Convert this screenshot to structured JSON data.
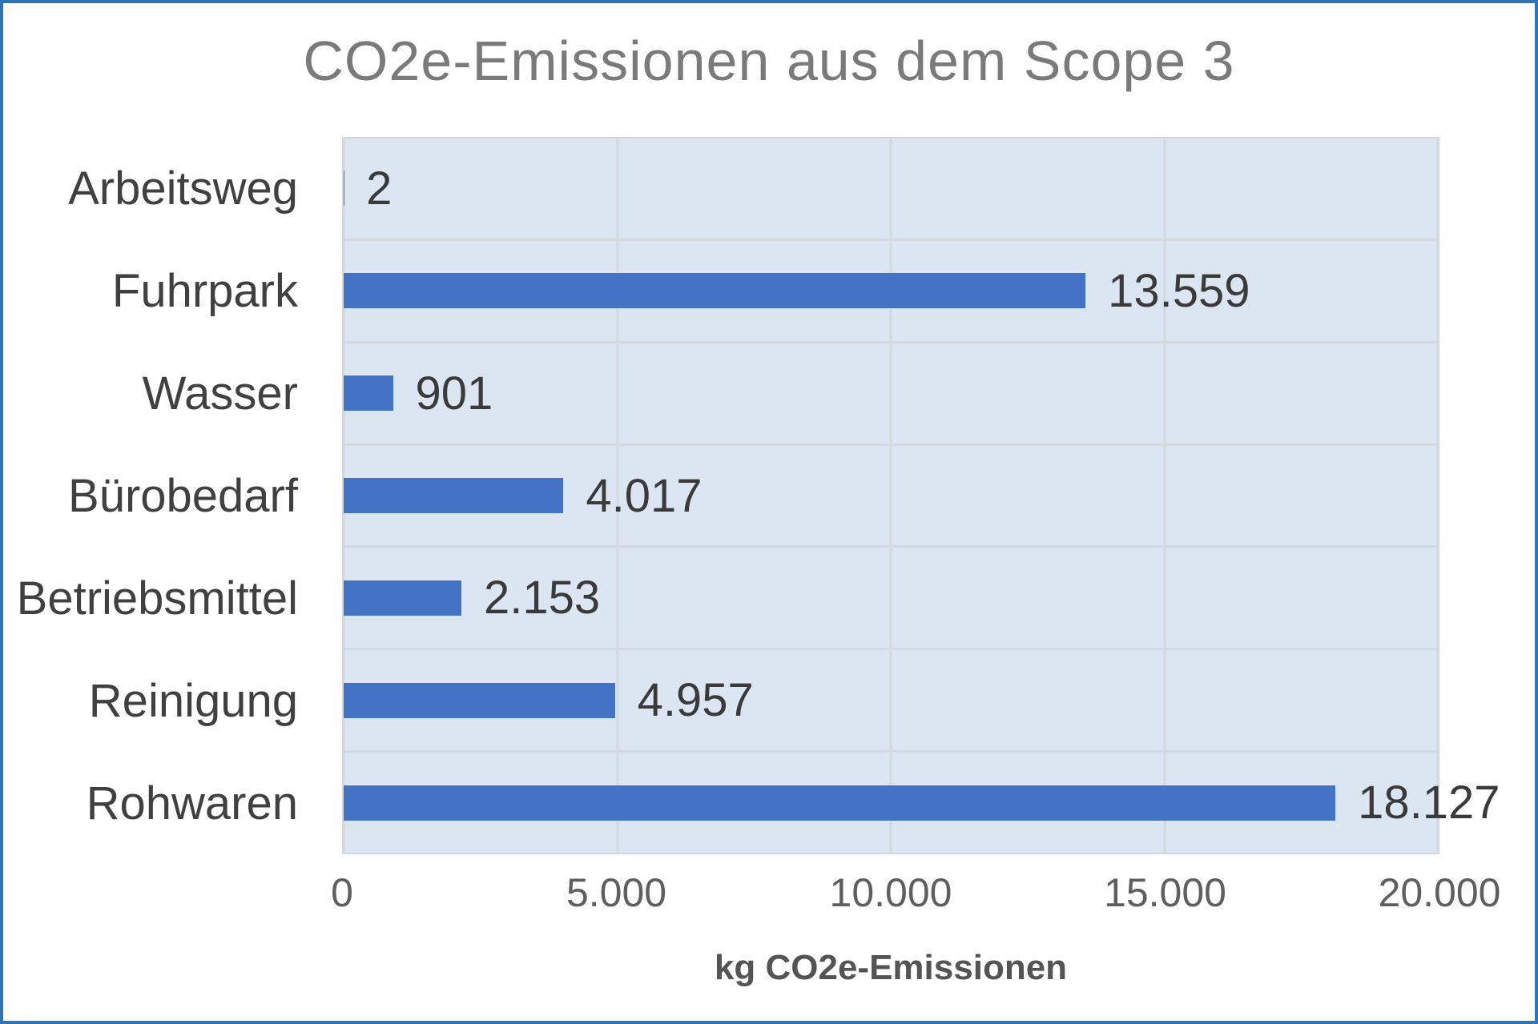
{
  "chart_data": {
    "type": "bar",
    "orientation": "horizontal",
    "title": "CO2e-Emissionen aus dem Scope 3",
    "xlabel": "kg CO2e-Emissionen",
    "categories": [
      "Arbeitsweg",
      "Fuhrpark",
      "Wasser",
      "Bürobedarf",
      "Betriebsmittel",
      "Reinigung",
      "Rohwaren"
    ],
    "values": [
      2,
      13559,
      901,
      4017,
      2153,
      4957,
      18127
    ],
    "value_labels": [
      "2",
      "13.559",
      "901",
      "4.017",
      "2.153",
      "4.957",
      "18.127"
    ],
    "xlim": [
      0,
      20000
    ],
    "x_ticks": [
      0,
      5000,
      10000,
      15000,
      20000
    ],
    "x_tick_labels": [
      "0",
      "5.000",
      "10.000",
      "15.000",
      "20.000"
    ],
    "grid": "vertical major gridlines at each tick, horizontal separators between category bands",
    "legend": "none",
    "colors": {
      "bar": "#4472C4",
      "plot_background": "#DCE6F2",
      "gridline": "#D3D9DF",
      "title": "#7A7A7A",
      "category_label": "#404040",
      "value_label": "#3A3A3A",
      "tick_label": "#5F5F5F",
      "axis_label": "#545454",
      "frame_border": "#2E75B6"
    }
  }
}
